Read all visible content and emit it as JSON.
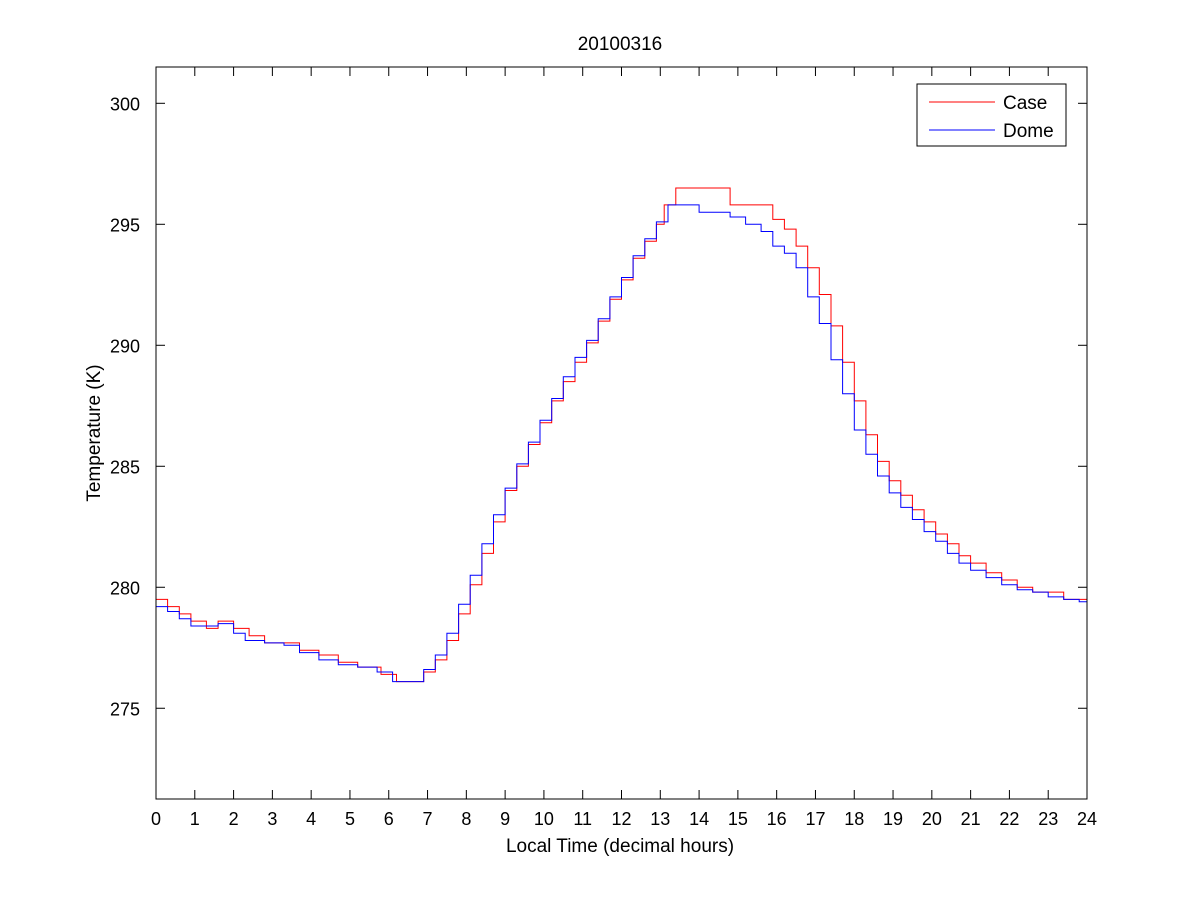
{
  "chart_data": {
    "type": "line",
    "title": "20100316",
    "xlabel": "Local Time (decimal hours)",
    "ylabel": "Temperature (K)",
    "xlim": [
      0,
      24
    ],
    "ylim": [
      271.25,
      301.5
    ],
    "xticks": [
      0,
      1,
      2,
      3,
      4,
      5,
      6,
      7,
      8,
      9,
      10,
      11,
      12,
      13,
      14,
      15,
      16,
      17,
      18,
      19,
      20,
      21,
      22,
      23,
      24
    ],
    "yticks": [
      275,
      280,
      285,
      290,
      295,
      300
    ],
    "grid": false,
    "legend": {
      "location": "top-right"
    },
    "series": [
      {
        "name": "Case",
        "color": "#ff0000",
        "points": [
          [
            0.0,
            279.5
          ],
          [
            0.3,
            279.2
          ],
          [
            0.6,
            278.9
          ],
          [
            0.9,
            278.6
          ],
          [
            1.3,
            278.3
          ],
          [
            1.6,
            278.6
          ],
          [
            2.0,
            278.3
          ],
          [
            2.4,
            278.0
          ],
          [
            2.8,
            277.7
          ],
          [
            3.3,
            277.7
          ],
          [
            3.7,
            277.4
          ],
          [
            4.2,
            277.2
          ],
          [
            4.7,
            276.9
          ],
          [
            5.2,
            276.7
          ],
          [
            5.8,
            276.4
          ],
          [
            6.2,
            276.1
          ],
          [
            6.6,
            276.1
          ],
          [
            6.9,
            276.5
          ],
          [
            7.2,
            277.0
          ],
          [
            7.5,
            277.8
          ],
          [
            7.8,
            278.9
          ],
          [
            8.1,
            280.1
          ],
          [
            8.4,
            281.4
          ],
          [
            8.7,
            282.7
          ],
          [
            9.0,
            284.0
          ],
          [
            9.3,
            285.0
          ],
          [
            9.6,
            285.9
          ],
          [
            9.9,
            286.8
          ],
          [
            10.2,
            287.7
          ],
          [
            10.5,
            288.5
          ],
          [
            10.8,
            289.3
          ],
          [
            11.1,
            290.1
          ],
          [
            11.4,
            291.0
          ],
          [
            11.7,
            291.9
          ],
          [
            12.0,
            292.7
          ],
          [
            12.3,
            293.6
          ],
          [
            12.6,
            294.3
          ],
          [
            12.9,
            295.0
          ],
          [
            13.1,
            295.8
          ],
          [
            13.4,
            296.5
          ],
          [
            14.0,
            296.5
          ],
          [
            14.6,
            296.5
          ],
          [
            14.8,
            295.8
          ],
          [
            15.2,
            295.8
          ],
          [
            15.6,
            295.8
          ],
          [
            15.9,
            295.2
          ],
          [
            16.2,
            294.8
          ],
          [
            16.5,
            294.1
          ],
          [
            16.8,
            293.2
          ],
          [
            17.1,
            292.1
          ],
          [
            17.4,
            290.8
          ],
          [
            17.7,
            289.3
          ],
          [
            18.0,
            287.7
          ],
          [
            18.3,
            286.3
          ],
          [
            18.6,
            285.2
          ],
          [
            18.9,
            284.4
          ],
          [
            19.2,
            283.8
          ],
          [
            19.5,
            283.2
          ],
          [
            19.8,
            282.7
          ],
          [
            20.1,
            282.2
          ],
          [
            20.4,
            281.8
          ],
          [
            20.7,
            281.3
          ],
          [
            21.0,
            281.0
          ],
          [
            21.4,
            280.6
          ],
          [
            21.8,
            280.3
          ],
          [
            22.2,
            280.0
          ],
          [
            22.6,
            279.8
          ],
          [
            23.0,
            279.8
          ],
          [
            23.4,
            279.5
          ],
          [
            23.8,
            279.5
          ],
          [
            24.0,
            279.5
          ]
        ]
      },
      {
        "name": "Dome",
        "color": "#0000ff",
        "points": [
          [
            0.0,
            279.2
          ],
          [
            0.3,
            279.0
          ],
          [
            0.6,
            278.7
          ],
          [
            0.9,
            278.4
          ],
          [
            1.3,
            278.4
          ],
          [
            1.6,
            278.5
          ],
          [
            2.0,
            278.1
          ],
          [
            2.3,
            277.8
          ],
          [
            2.8,
            277.7
          ],
          [
            3.3,
            277.6
          ],
          [
            3.7,
            277.3
          ],
          [
            4.2,
            277.0
          ],
          [
            4.7,
            276.8
          ],
          [
            5.2,
            276.7
          ],
          [
            5.7,
            276.5
          ],
          [
            6.1,
            276.1
          ],
          [
            6.6,
            276.1
          ],
          [
            6.9,
            276.6
          ],
          [
            7.2,
            277.2
          ],
          [
            7.5,
            278.1
          ],
          [
            7.8,
            279.3
          ],
          [
            8.1,
            280.5
          ],
          [
            8.4,
            281.8
          ],
          [
            8.7,
            283.0
          ],
          [
            9.0,
            284.1
          ],
          [
            9.3,
            285.1
          ],
          [
            9.6,
            286.0
          ],
          [
            9.9,
            286.9
          ],
          [
            10.2,
            287.8
          ],
          [
            10.5,
            288.7
          ],
          [
            10.8,
            289.5
          ],
          [
            11.1,
            290.2
          ],
          [
            11.4,
            291.1
          ],
          [
            11.7,
            292.0
          ],
          [
            12.0,
            292.8
          ],
          [
            12.3,
            293.7
          ],
          [
            12.6,
            294.4
          ],
          [
            12.9,
            295.1
          ],
          [
            13.2,
            295.8
          ],
          [
            13.6,
            295.8
          ],
          [
            14.0,
            295.5
          ],
          [
            14.4,
            295.5
          ],
          [
            14.8,
            295.3
          ],
          [
            15.2,
            295.0
          ],
          [
            15.6,
            294.7
          ],
          [
            15.9,
            294.1
          ],
          [
            16.2,
            293.8
          ],
          [
            16.5,
            293.2
          ],
          [
            16.8,
            292.0
          ],
          [
            17.1,
            290.9
          ],
          [
            17.4,
            289.4
          ],
          [
            17.7,
            288.0
          ],
          [
            18.0,
            286.5
          ],
          [
            18.3,
            285.5
          ],
          [
            18.6,
            284.6
          ],
          [
            18.9,
            283.9
          ],
          [
            19.2,
            283.3
          ],
          [
            19.5,
            282.8
          ],
          [
            19.8,
            282.3
          ],
          [
            20.1,
            281.9
          ],
          [
            20.4,
            281.4
          ],
          [
            20.7,
            281.0
          ],
          [
            21.0,
            280.7
          ],
          [
            21.4,
            280.4
          ],
          [
            21.8,
            280.1
          ],
          [
            22.2,
            279.9
          ],
          [
            22.6,
            279.8
          ],
          [
            23.0,
            279.6
          ],
          [
            23.4,
            279.5
          ],
          [
            23.8,
            279.4
          ],
          [
            24.0,
            279.3
          ]
        ]
      }
    ]
  }
}
